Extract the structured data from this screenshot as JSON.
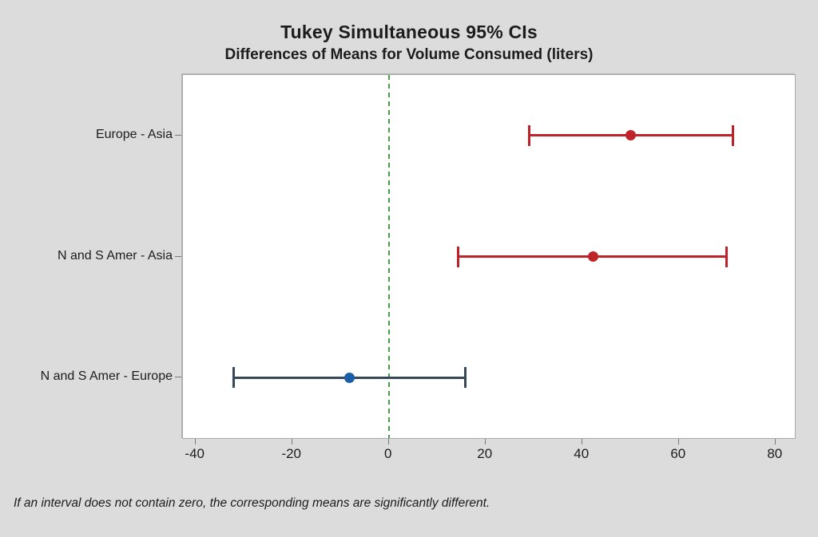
{
  "chart_data": {
    "type": "scatter",
    "style": "horizontal-confidence-intervals",
    "title": "Tukey Simultaneous 95% CIs",
    "subtitle": "Differences of Means for Volume Consumed (liters)",
    "xlabel": "",
    "ylabel": "",
    "xlim": [
      -42.6,
      84.0
    ],
    "xticks": [
      -40,
      -20,
      0,
      20,
      40,
      60,
      80
    ],
    "grid": false,
    "legend": false,
    "reference_line": {
      "x": 0,
      "style": "dashed",
      "color": "#44a048"
    },
    "categories": [
      "Europe - Asia",
      "N and S Amer - Asia",
      "N and S Amer - Europe"
    ],
    "intervals": [
      {
        "label": "Europe - Asia",
        "lower": 29.1,
        "center": 50.0,
        "upper": 71.2,
        "significant": true,
        "bar_color": "#c0222a",
        "point_color": "#c0222a"
      },
      {
        "label": "N and S Amer - Asia",
        "lower": 14.4,
        "center": 42.3,
        "upper": 69.8,
        "significant": true,
        "bar_color": "#c0222a",
        "point_color": "#c0222a"
      },
      {
        "label": "N and S Amer - Europe",
        "lower": -32.1,
        "center": -8.1,
        "upper": 15.9,
        "significant": false,
        "bar_color": "#35495a",
        "point_color": "#1a5ea8"
      }
    ],
    "footnote": "If an interval does not contain zero, the corresponding means are significantly different.",
    "colors": {
      "background": "#dcdcdc",
      "plot_background": "#ffffff",
      "plot_border": "#a9a9a9",
      "significant_interval": "#c0222a",
      "nonsignificant_bar": "#35495a",
      "nonsignificant_point": "#1a5ea8",
      "zero_line": "#44a048",
      "text": "#1c1c1c"
    }
  }
}
